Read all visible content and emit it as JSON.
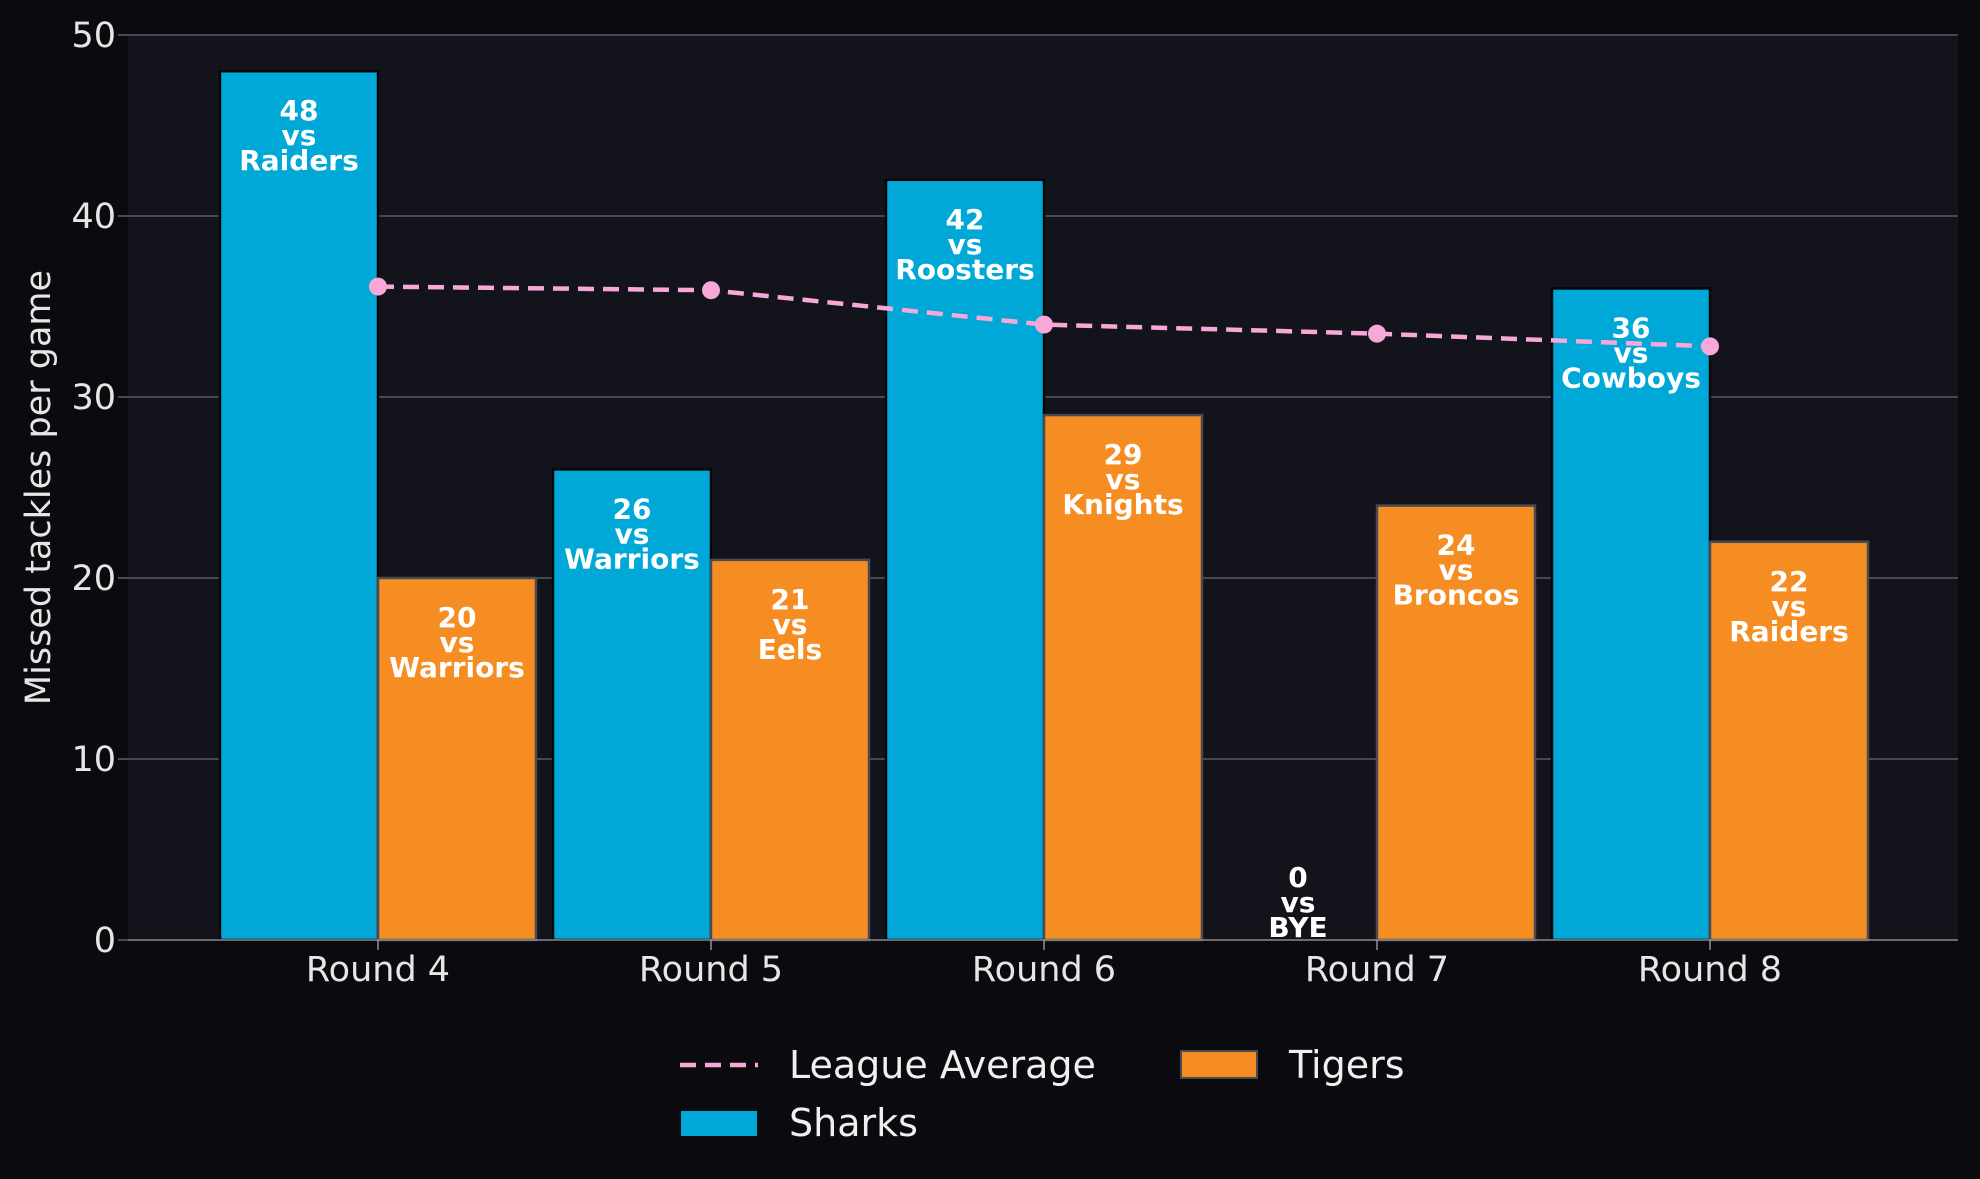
{
  "chart_data": {
    "type": "bar",
    "categories": [
      "Round 4",
      "Round 5",
      "Round 6",
      "Round 7",
      "Round 8"
    ],
    "series": [
      {
        "name": "Sharks",
        "values": [
          48,
          26,
          42,
          0,
          36
        ],
        "opponents": [
          "Raiders",
          "Warriors",
          "Roosters",
          "BYE",
          "Cowboys"
        ],
        "color": "#00a8d8"
      },
      {
        "name": "Tigers",
        "values": [
          20,
          21,
          29,
          24,
          22
        ],
        "opponents": [
          "Warriors",
          "Eels",
          "Knights",
          "Broncos",
          "Raiders"
        ],
        "color": "#f68d22"
      }
    ],
    "line_series": {
      "name": "League Average",
      "values": [
        36.1,
        35.9,
        34.0,
        33.5,
        32.8
      ],
      "color": "#f7a8d8",
      "style": "dashed"
    },
    "vs_word": "vs",
    "xlabel": "",
    "ylabel": "Missed tackles per game",
    "ylim": [
      0,
      50
    ],
    "yticks": [
      0,
      10,
      20,
      30,
      40,
      50
    ],
    "grid": true,
    "legend_position": "bottom-center",
    "colors": {
      "background": "#0b0b0f",
      "plot_background": "#13131b",
      "grid": "#5a5a62",
      "text": "#e6e6e6"
    }
  }
}
